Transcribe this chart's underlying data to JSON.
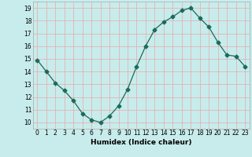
{
  "x": [
    0,
    1,
    2,
    3,
    4,
    5,
    6,
    7,
    8,
    9,
    10,
    11,
    12,
    13,
    14,
    15,
    16,
    17,
    18,
    19,
    20,
    21,
    22,
    23
  ],
  "y": [
    14.9,
    14.0,
    13.1,
    12.5,
    11.7,
    10.7,
    10.2,
    10.0,
    10.5,
    11.3,
    12.6,
    14.4,
    16.0,
    17.3,
    17.9,
    18.3,
    18.8,
    19.0,
    18.2,
    17.5,
    16.3,
    15.3,
    15.2,
    14.4
  ],
  "line_color": "#1a6b5a",
  "marker": "D",
  "marker_size": 2.5,
  "bg_color": "#c8ecec",
  "grid_color": "#e8a8a8",
  "xlabel": "Humidex (Indice chaleur)",
  "ylabel": "",
  "xlim": [
    -0.5,
    23.5
  ],
  "ylim": [
    9.5,
    19.5
  ],
  "yticks": [
    10,
    11,
    12,
    13,
    14,
    15,
    16,
    17,
    18,
    19
  ],
  "xticks": [
    0,
    1,
    2,
    3,
    4,
    5,
    6,
    7,
    8,
    9,
    10,
    11,
    12,
    13,
    14,
    15,
    16,
    17,
    18,
    19,
    20,
    21,
    22,
    23
  ],
  "xlabel_fontsize": 6.5,
  "tick_fontsize": 5.5
}
